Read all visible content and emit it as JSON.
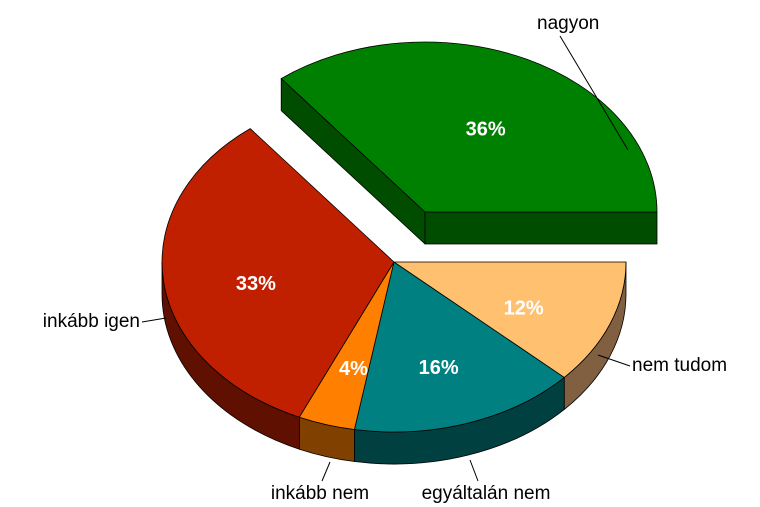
{
  "chart_data": {
    "type": "pie",
    "categories": [
      "nagyon",
      "inkább igen",
      "inkább nem",
      "egyáltalán nem",
      "nem tudom"
    ],
    "values": [
      36,
      33,
      4,
      16,
      12
    ],
    "value_labels": [
      "36%",
      "33%",
      "4%",
      "16%",
      "12%"
    ],
    "colors": [
      "#008000",
      "#c02000",
      "#ff8000",
      "#008080",
      "#ffc070"
    ],
    "side_colors": [
      "#004d00",
      "#601000",
      "#804000",
      "#004040",
      "#806040"
    ],
    "exploded": [
      "nagyon"
    ]
  }
}
